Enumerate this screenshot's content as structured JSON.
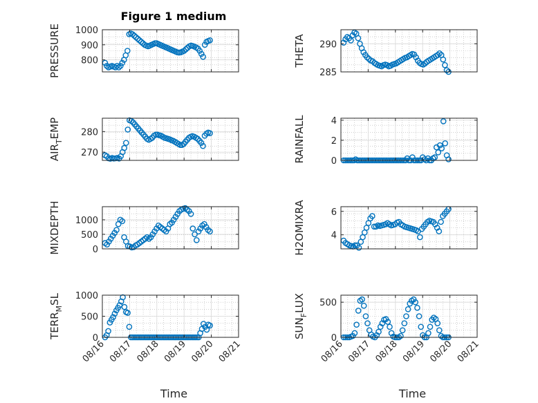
{
  "title": "Figure 1 medium",
  "colors": {
    "marker": "#0072BD",
    "axis": "#262626",
    "grid": "#b0b0b0"
  },
  "chart_data": [
    {
      "type": "scatter",
      "ylabel_main": "PRESSURE",
      "ylabel_sub": "",
      "ylabel_rest": "",
      "ylim": [
        720,
        1000
      ],
      "yticks": [
        800,
        900,
        1000
      ],
      "xlim": [
        0,
        5
      ],
      "grid": true,
      "y": [
        780,
        760,
        750,
        755,
        760,
        755,
        750,
        760,
        750,
        760,
        780,
        800,
        830,
        860,
        970,
        975,
        970,
        960,
        950,
        940,
        930,
        920,
        910,
        900,
        895,
        890,
        895,
        900,
        905,
        910,
        910,
        905,
        900,
        895,
        890,
        885,
        880,
        875,
        870,
        865,
        860,
        855,
        850,
        848,
        850,
        855,
        860,
        870,
        880,
        890,
        895,
        892,
        888,
        882,
        875,
        860,
        840,
        820,
        900,
        920,
        925,
        930
      ]
    },
    {
      "type": "scatter",
      "ylabel_main": "THETA",
      "ylabel_sub": "",
      "ylabel_rest": "",
      "ylim": [
        285,
        292.5
      ],
      "yticks": [
        285,
        290
      ],
      "xlim": [
        0,
        5
      ],
      "grid": true,
      "y": [
        290.2,
        290.8,
        291.2,
        291,
        290.6,
        291.5,
        292,
        291.8,
        291,
        290,
        289.2,
        288.5,
        288,
        287.6,
        287.3,
        287,
        286.9,
        286.6,
        286.4,
        286.2,
        286.1,
        286,
        286.2,
        286.3,
        286.2,
        286,
        286.1,
        286.3,
        286.4,
        286.5,
        286.7,
        286.9,
        287.1,
        287.3,
        287.5,
        287.6,
        287.8,
        288,
        288.2,
        288.1,
        287.6,
        287,
        286.6,
        286.4,
        286.3,
        286.5,
        286.8,
        287,
        287.2,
        287.4,
        287.6,
        287.8,
        288,
        288.3,
        288,
        287.2,
        286.2,
        285.3,
        285
      ]
    },
    {
      "type": "scatter",
      "ylabel_main": "AIR",
      "ylabel_sub": "T",
      "ylabel_rest": "EMP",
      "ylim": [
        266,
        286.5
      ],
      "yticks": [
        270,
        280
      ],
      "xlim": [
        0,
        5
      ],
      "grid": true,
      "y": [
        268.5,
        268,
        267,
        266.8,
        267.2,
        266.9,
        267,
        267.2,
        266.9,
        268,
        270,
        272,
        274.5,
        281,
        285.5,
        285.2,
        284.5,
        283.5,
        282.5,
        281.5,
        280.5,
        279.5,
        278.5,
        277.5,
        276.5,
        276,
        276.5,
        277,
        278,
        278.5,
        278.5,
        278.2,
        278,
        277.5,
        277,
        276.8,
        276.5,
        276.2,
        275.8,
        275.5,
        275,
        274.5,
        274,
        273.5,
        273.5,
        274,
        275,
        276,
        277,
        277.5,
        277.8,
        277.5,
        277,
        276.5,
        275.5,
        274.5,
        273,
        278,
        279,
        279.5,
        279.2
      ]
    },
    {
      "type": "scatter",
      "ylabel_main": "RAINFALL",
      "ylabel_sub": "",
      "ylabel_rest": "",
      "ylim": [
        0,
        4.2
      ],
      "yticks": [
        0,
        2,
        4
      ],
      "xlim": [
        0,
        5
      ],
      "grid": true,
      "y": [
        0,
        0,
        0,
        0,
        0,
        0,
        0,
        0.1,
        0,
        0,
        0,
        0,
        0,
        0,
        0,
        0,
        0,
        0,
        0,
        0,
        0,
        0,
        0,
        0,
        0,
        0,
        0,
        0,
        0,
        0,
        0,
        0,
        0,
        0,
        0,
        0,
        0,
        0.2,
        0,
        0,
        0.3,
        0,
        0,
        0,
        0,
        0,
        0.3,
        0.1,
        0,
        0.2,
        0,
        0,
        0.2,
        0.3,
        1.3,
        0.8,
        1.5,
        1.2,
        3.9,
        1.7,
        0.5,
        0.1
      ]
    },
    {
      "type": "scatter",
      "ylabel_main": "MIXDEPTH",
      "ylabel_sub": "",
      "ylabel_rest": "",
      "ylim": [
        0,
        1450
      ],
      "yticks": [
        0,
        500,
        1000
      ],
      "xlim": [
        0,
        5
      ],
      "grid": true,
      "y": [
        200,
        150,
        250,
        350,
        450,
        550,
        650,
        850,
        1000,
        950,
        400,
        250,
        100,
        80,
        50,
        60,
        120,
        150,
        200,
        250,
        300,
        350,
        400,
        350,
        400,
        500,
        600,
        700,
        800,
        750,
        700,
        650,
        600,
        700,
        850,
        900,
        1000,
        1100,
        1200,
        1300,
        1350,
        1380,
        1400,
        1350,
        1300,
        1200,
        700,
        500,
        300,
        600,
        700,
        800,
        850,
        750,
        650,
        600
      ]
    },
    {
      "type": "scatter",
      "ylabel_main": "H2OMIXRA",
      "ylabel_sub": "",
      "ylabel_rest": "",
      "ylim": [
        2.8,
        6.4
      ],
      "yticks": [
        4,
        6
      ],
      "xlim": [
        0,
        5
      ],
      "grid": true,
      "y": [
        3.5,
        3.3,
        3.2,
        3.1,
        3.05,
        3,
        3.1,
        3.1,
        2.9,
        3.4,
        3.8,
        4.2,
        4.6,
        5,
        5.4,
        5.6,
        4.7,
        4.7,
        4.8,
        4.75,
        4.8,
        4.85,
        4.9,
        5,
        4.9,
        4.8,
        4.85,
        4.9,
        5.05,
        5.1,
        4.9,
        4.8,
        4.7,
        4.65,
        4.6,
        4.55,
        4.5,
        4.45,
        4.4,
        4.3,
        3.8,
        4.5,
        4.7,
        4.9,
        5.1,
        5.2,
        5.15,
        5.1,
        4.9,
        4.6,
        4.3,
        5.1,
        5.6,
        5.8,
        6,
        6.2
      ]
    },
    {
      "type": "scatter",
      "ylabel_main": "TERR",
      "ylabel_sub": "M",
      "ylabel_rest": "SL",
      "ylim": [
        0,
        1000
      ],
      "yticks": [
        0,
        500,
        1000
      ],
      "xlim": [
        0,
        5
      ],
      "grid": true,
      "y": [
        0,
        50,
        150,
        350,
        420,
        480,
        560,
        640,
        700,
        760,
        850,
        950,
        720,
        600,
        580,
        250,
        0,
        0,
        0,
        0,
        0,
        0,
        0,
        0,
        0,
        0,
        0,
        0,
        0,
        0,
        0,
        0,
        0,
        0,
        0,
        0,
        0,
        0,
        0,
        0,
        0,
        0,
        0,
        0,
        0,
        0,
        0,
        0,
        0,
        0,
        0,
        0,
        0,
        0,
        0,
        0,
        0,
        0,
        0,
        100,
        200,
        320,
        250,
        180,
        300,
        280
      ]
    },
    {
      "type": "scatter",
      "ylabel_main": "SUN",
      "ylabel_sub": "F",
      "ylabel_rest": "LUX",
      "ylim": [
        0,
        600
      ],
      "yticks": [
        0,
        500
      ],
      "xlim": [
        0,
        5
      ],
      "grid": true,
      "y": [
        0,
        0,
        0,
        0,
        10,
        20,
        60,
        180,
        380,
        520,
        540,
        450,
        300,
        200,
        100,
        40,
        10,
        0,
        30,
        80,
        150,
        200,
        250,
        260,
        220,
        150,
        60,
        10,
        0,
        0,
        0,
        20,
        100,
        200,
        300,
        400,
        480,
        520,
        540,
        500,
        420,
        300,
        150,
        30,
        0,
        0,
        60,
        150,
        250,
        280,
        260,
        200,
        100,
        20,
        0,
        0,
        0,
        0
      ]
    }
  ],
  "xaxis": {
    "ticks": [
      "08/16",
      "08/17",
      "08/18",
      "08/19",
      "08/20",
      "08/21"
    ],
    "label": "Time"
  }
}
